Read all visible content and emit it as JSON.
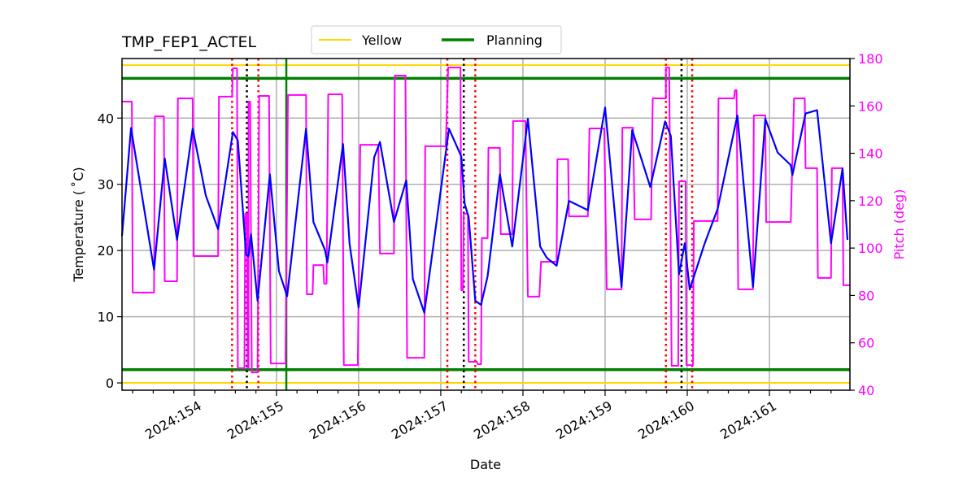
{
  "chart_data": {
    "type": "line",
    "title": "TMP_FEP1_ACTEL",
    "xlabel": "Date",
    "ylabel": "Temperature ($^\\circ$C)",
    "ylabel_display": "Temperature ( ˚C)",
    "y2label": "Pitch (deg)",
    "xlim": [
      153.12,
      161.98
    ],
    "ylim": [
      -1.1,
      49.0
    ],
    "y2lim": [
      40,
      180
    ],
    "grid": true,
    "legend_placement": "top-center",
    "x_ticks": [
      154,
      155,
      156,
      157,
      158,
      159,
      160,
      161
    ],
    "x_tick_labels": [
      "2024:154",
      "2024:155",
      "2024:156",
      "2024:157",
      "2024:158",
      "2024:159",
      "2024:160",
      "2024:161"
    ],
    "y_ticks": [
      0,
      10,
      20,
      30,
      40
    ],
    "y_tick_labels": [
      "0",
      "10",
      "20",
      "30",
      "40"
    ],
    "y2_ticks": [
      40,
      60,
      80,
      100,
      120,
      140,
      160,
      180
    ],
    "y2_tick_labels": [
      "40",
      "60",
      "80",
      "100",
      "120",
      "140",
      "160",
      "180"
    ],
    "legend": [
      {
        "name": "Yellow",
        "color": "#ffd700"
      },
      {
        "name": "Planning",
        "color": "#008000"
      }
    ],
    "limit_lines": [
      {
        "name": "Yellow",
        "color": "#ffd700",
        "values": [
          48.0,
          0.0
        ]
      },
      {
        "name": "Planning",
        "color": "#008000",
        "values": [
          46.0,
          2.0
        ]
      }
    ],
    "planning_vertical_line": {
      "x": 155.12,
      "color": "#008000"
    },
    "event_lines": [
      {
        "x": 154.46,
        "color": "#ff0000",
        "style": "dotted"
      },
      {
        "x": 154.64,
        "color": "#000000",
        "style": "dotted"
      },
      {
        "x": 154.78,
        "color": "#ff0000",
        "style": "dotted"
      },
      {
        "x": 157.08,
        "color": "#ff0000",
        "style": "dotted"
      },
      {
        "x": 157.28,
        "color": "#000000",
        "style": "dotted"
      },
      {
        "x": 157.42,
        "color": "#ff0000",
        "style": "dotted"
      },
      {
        "x": 159.74,
        "color": "#ff0000",
        "style": "dotted"
      },
      {
        "x": 159.93,
        "color": "#000000",
        "style": "dotted"
      },
      {
        "x": 160.06,
        "color": "#ff0000",
        "style": "dotted"
      }
    ],
    "temperature": {
      "color": "#0000ff",
      "points": [
        [
          153.12,
          22.2
        ],
        [
          153.23,
          38.5
        ],
        [
          153.51,
          17.1
        ],
        [
          153.64,
          33.9
        ],
        [
          153.79,
          21.6
        ],
        [
          153.98,
          38.4
        ],
        [
          154.14,
          28.3
        ],
        [
          154.29,
          23.2
        ],
        [
          154.47,
          37.9
        ],
        [
          154.53,
          36.6
        ],
        [
          154.63,
          19.4
        ],
        [
          154.66,
          19.1
        ],
        [
          154.69,
          22.5
        ],
        [
          154.77,
          12.4
        ],
        [
          154.92,
          31.5
        ],
        [
          155.03,
          16.9
        ],
        [
          155.13,
          13.1
        ],
        [
          155.36,
          38.4
        ],
        [
          155.45,
          24.3
        ],
        [
          155.59,
          20.1
        ],
        [
          155.62,
          18.2
        ],
        [
          155.81,
          36.1
        ],
        [
          155.89,
          21.0
        ],
        [
          156.0,
          11.4
        ],
        [
          156.19,
          34.1
        ],
        [
          156.26,
          36.4
        ],
        [
          156.43,
          24.3
        ],
        [
          156.58,
          30.6
        ],
        [
          156.66,
          15.7
        ],
        [
          156.8,
          10.6
        ],
        [
          157.1,
          38.4
        ],
        [
          157.25,
          34.2
        ],
        [
          157.29,
          27.1
        ],
        [
          157.34,
          25.0
        ],
        [
          157.42,
          12.4
        ],
        [
          157.49,
          11.8
        ],
        [
          157.57,
          16.1
        ],
        [
          157.72,
          31.5
        ],
        [
          157.87,
          20.6
        ],
        [
          158.06,
          39.9
        ],
        [
          158.21,
          20.6
        ],
        [
          158.29,
          18.9
        ],
        [
          158.41,
          17.7
        ],
        [
          158.56,
          27.5
        ],
        [
          158.79,
          26.1
        ],
        [
          159.0,
          41.6
        ],
        [
          159.2,
          14.5
        ],
        [
          159.33,
          38.2
        ],
        [
          159.55,
          29.6
        ],
        [
          159.73,
          39.5
        ],
        [
          159.8,
          37.3
        ],
        [
          159.9,
          16.4
        ],
        [
          159.97,
          21.1
        ],
        [
          160.03,
          14.1
        ],
        [
          160.21,
          21.0
        ],
        [
          160.37,
          26.3
        ],
        [
          160.61,
          40.4
        ],
        [
          160.8,
          14.5
        ],
        [
          160.95,
          39.9
        ],
        [
          161.1,
          34.8
        ],
        [
          161.26,
          32.9
        ],
        [
          161.28,
          31.4
        ],
        [
          161.44,
          40.7
        ],
        [
          161.58,
          41.2
        ],
        [
          161.75,
          21.1
        ],
        [
          161.89,
          32.4
        ],
        [
          161.95,
          21.6
        ]
      ]
    },
    "pitch": {
      "color": "#ff00ff",
      "steps": [
        [
          153.12,
          153.24,
          161.8
        ],
        [
          153.25,
          153.51,
          81.2
        ],
        [
          153.52,
          153.63,
          155.6
        ],
        [
          153.64,
          153.79,
          86.0
        ],
        [
          153.8,
          153.98,
          163.2
        ],
        [
          153.99,
          154.29,
          96.6
        ],
        [
          154.3,
          154.46,
          163.9
        ],
        [
          154.47,
          154.52,
          175.9
        ],
        [
          154.53,
          154.61,
          49.3
        ],
        [
          154.62,
          154.64,
          114.5
        ],
        [
          154.65,
          154.66,
          49.3
        ],
        [
          154.66,
          154.68,
          161.8
        ],
        [
          154.7,
          154.77,
          47.5
        ],
        [
          154.79,
          154.91,
          164.2
        ],
        [
          154.93,
          155.11,
          51.3
        ],
        [
          155.14,
          155.36,
          164.6
        ],
        [
          155.37,
          155.44,
          80.5
        ],
        [
          155.45,
          155.57,
          92.8
        ],
        [
          155.58,
          155.61,
          85.0
        ],
        [
          155.63,
          155.8,
          164.9
        ],
        [
          155.82,
          155.99,
          50.6
        ],
        [
          156.02,
          156.24,
          143.6
        ],
        [
          156.26,
          156.43,
          97.7
        ],
        [
          156.44,
          156.57,
          172.8
        ],
        [
          156.59,
          156.8,
          53.7
        ],
        [
          156.81,
          157.06,
          143.0
        ],
        [
          157.09,
          157.24,
          176.2
        ],
        [
          157.25,
          157.27,
          82.2
        ],
        [
          157.28,
          157.33,
          114.5
        ],
        [
          157.34,
          157.44,
          52.0
        ],
        [
          157.45,
          157.49,
          51.0
        ],
        [
          157.5,
          157.57,
          104.2
        ],
        [
          157.58,
          157.72,
          142.3
        ],
        [
          157.73,
          157.87,
          105.9
        ],
        [
          157.88,
          158.03,
          153.6
        ],
        [
          158.06,
          158.2,
          79.5
        ],
        [
          158.22,
          158.41,
          94.2
        ],
        [
          158.42,
          158.55,
          137.5
        ],
        [
          158.56,
          158.79,
          113.4
        ],
        [
          158.81,
          158.99,
          150.5
        ],
        [
          159.02,
          159.2,
          82.6
        ],
        [
          159.21,
          159.34,
          150.8
        ],
        [
          159.36,
          159.56,
          112.1
        ],
        [
          159.58,
          159.74,
          163.2
        ],
        [
          159.74,
          159.78,
          176.2
        ],
        [
          159.81,
          159.89,
          50.3
        ],
        [
          159.9,
          159.98,
          128.2
        ],
        [
          159.99,
          160.07,
          50.6
        ],
        [
          160.08,
          160.37,
          111.4
        ],
        [
          160.38,
          160.57,
          163.2
        ],
        [
          160.58,
          160.6,
          166.6
        ],
        [
          160.62,
          160.8,
          82.6
        ],
        [
          160.81,
          160.95,
          156.0
        ],
        [
          160.96,
          161.26,
          111.0
        ],
        [
          161.3,
          161.43,
          163.2
        ],
        [
          161.44,
          161.58,
          133.7
        ],
        [
          161.59,
          161.75,
          87.4
        ],
        [
          161.76,
          161.89,
          133.7
        ],
        [
          161.9,
          161.98,
          84.3
        ]
      ]
    }
  }
}
